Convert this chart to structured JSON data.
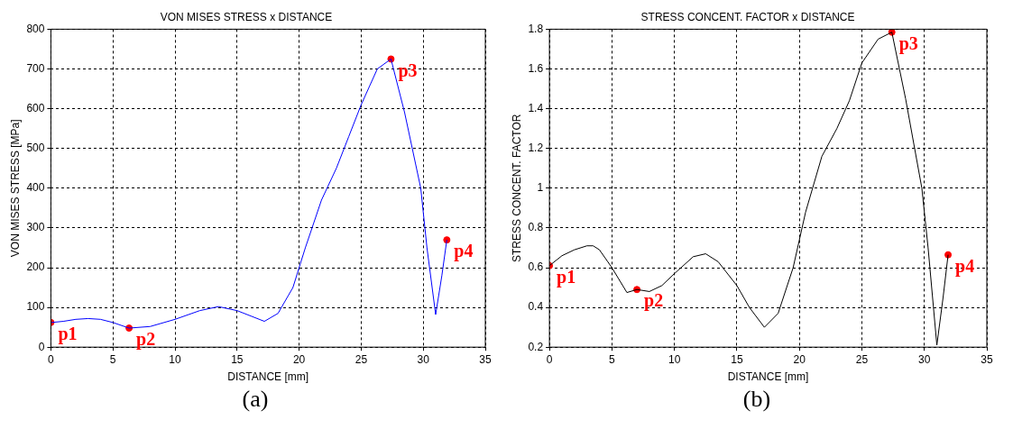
{
  "chart_data": [
    {
      "type": "line",
      "title": "VON MISES STRESS x DISTANCE",
      "xlabel": "DISTANCE [mm]",
      "ylabel": "VON MISES STRESS [MPa]",
      "xlim": [
        0,
        35
      ],
      "xticks": [
        0,
        5,
        10,
        15,
        20,
        25,
        30,
        35
      ],
      "ylim": [
        0,
        800
      ],
      "yticks": [
        0,
        100,
        200,
        300,
        400,
        500,
        600,
        700,
        800
      ],
      "grid": true,
      "legend": false,
      "series": [
        {
          "color": "#0000ff",
          "marker": "none",
          "x": [
            0,
            1,
            2,
            3,
            4,
            5,
            6.3,
            8,
            10,
            12,
            13.5,
            15,
            17.2,
            18.3,
            19.5,
            20.5,
            21.8,
            23,
            24,
            25,
            26.3,
            27.4,
            28.5,
            29.8,
            30.3,
            31,
            31.5,
            31.9
          ],
          "values": [
            62,
            65,
            70,
            72,
            70,
            62,
            48,
            52,
            70,
            92,
            102,
            92,
            65,
            85,
            150,
            250,
            370,
            450,
            530,
            610,
            700,
            725,
            590,
            400,
            250,
            82,
            180,
            270
          ]
        },
        {
          "type": "scatter",
          "color": "#ff0000",
          "marker": "circle",
          "x": [
            0,
            6.3,
            27.4,
            31.9
          ],
          "values": [
            62,
            48,
            725,
            270
          ]
        }
      ],
      "annotations": [
        {
          "text": "p1",
          "x": 0,
          "y": 62
        },
        {
          "text": "p2",
          "x": 6.3,
          "y": 48
        },
        {
          "text": "p3",
          "x": 27.4,
          "y": 725
        },
        {
          "text": "p4",
          "x": 31.9,
          "y": 270
        },
        "(a)"
      ]
    },
    {
      "type": "line",
      "title": "STRESS CONCENT. FACTOR x DISTANCE",
      "xlabel": "DISTANCE [mm]",
      "ylabel": "STRESS CONCENT. FACTOR",
      "xlim": [
        0,
        35
      ],
      "xticks": [
        0,
        5,
        10,
        15,
        20,
        25,
        30,
        35
      ],
      "ylim": [
        0.2,
        1.8
      ],
      "yticks": [
        0.2,
        0.4,
        0.6,
        0.8,
        1,
        1.2,
        1.4,
        1.6,
        1.8
      ],
      "grid": true,
      "legend": false,
      "series": [
        {
          "color": "#000000",
          "marker": "none",
          "x": [
            0,
            1,
            2,
            3,
            3.5,
            4,
            5,
            6.2,
            7,
            8,
            9,
            10,
            11.5,
            12.5,
            13.5,
            15,
            16,
            17.2,
            18.3,
            19.5,
            20.5,
            21.8,
            23,
            24,
            25,
            26.3,
            27.4,
            28.5,
            29.8,
            30.3,
            31,
            31.5,
            31.9
          ],
          "values": [
            0.61,
            0.66,
            0.69,
            0.71,
            0.71,
            0.69,
            0.6,
            0.475,
            0.49,
            0.48,
            0.51,
            0.57,
            0.655,
            0.67,
            0.63,
            0.51,
            0.4,
            0.3,
            0.37,
            0.6,
            0.88,
            1.16,
            1.3,
            1.44,
            1.63,
            1.75,
            1.785,
            1.45,
            1.0,
            0.7,
            0.21,
            0.45,
            0.665
          ]
        },
        {
          "type": "scatter",
          "color": "#ff0000",
          "marker": "circle",
          "x": [
            0,
            7,
            27.4,
            31.9
          ],
          "values": [
            0.61,
            0.49,
            1.785,
            0.665
          ]
        }
      ],
      "annotations": [
        {
          "text": "p1",
          "x": 0,
          "y": 0.61
        },
        {
          "text": "p2",
          "x": 7,
          "y": 0.49
        },
        {
          "text": "p3",
          "x": 27.4,
          "y": 1.785
        },
        {
          "text": "p4",
          "x": 31.9,
          "y": 0.665
        },
        "(b)"
      ]
    }
  ]
}
